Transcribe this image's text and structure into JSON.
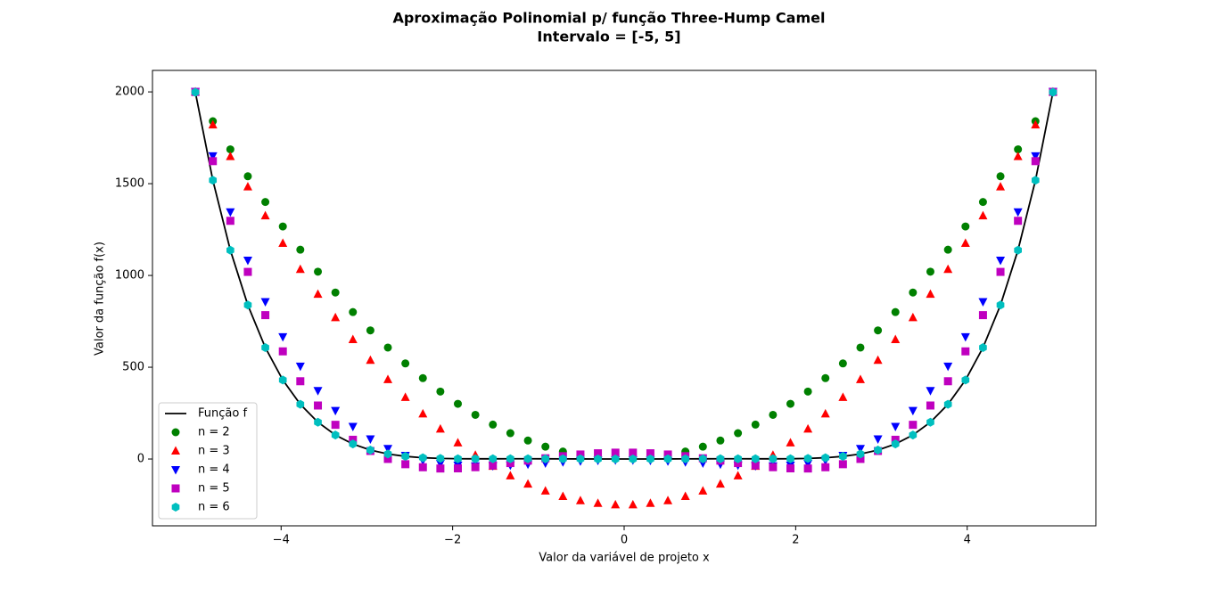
{
  "chart_data": {
    "type": "scatter",
    "title": "Aproximação Polinomial p/ função Three-Hump Camel",
    "subtitle": "Intervalo = [-5, 5]",
    "xlabel": "Valor da variável de projeto x",
    "ylabel": "Valor da função f(x)",
    "xlim": [
      -5.5,
      5.5
    ],
    "ylim": [
      -364,
      2117
    ],
    "xticks": [
      {
        "value": -4,
        "label": "−4"
      },
      {
        "value": -2,
        "label": "−2"
      },
      0,
      2,
      4
    ],
    "yticks": [
      0,
      500,
      1000,
      1500,
      2000
    ],
    "legend": "lower left",
    "x": [
      -5,
      -4.796,
      -4.592,
      -4.388,
      -4.184,
      -3.98,
      -3.776,
      -3.571,
      -3.367,
      -3.163,
      -2.959,
      -2.755,
      -2.551,
      -2.347,
      -2.143,
      -1.939,
      -1.735,
      -1.531,
      -1.327,
      -1.122,
      -0.918,
      -0.714,
      -0.51,
      -0.306,
      -0.102,
      0.102,
      0.306,
      0.51,
      0.714,
      0.918,
      1.122,
      1.327,
      1.531,
      1.735,
      1.939,
      2.143,
      2.347,
      2.551,
      2.755,
      2.959,
      3.163,
      3.367,
      3.571,
      3.776,
      3.98,
      4.184,
      4.388,
      4.592,
      4.796,
      5
    ],
    "series": [
      {
        "name": "Função f",
        "color": "#000000",
        "style": "line",
        "values": [
          1997.92,
          1518.57,
          1137.68,
          838.65,
          607.03,
          430.35,
          297.89,
          200.54,
          130.66,
          81.86,
          48.91,
          27.57,
          14.48,
          7.01,
          3.18,
          1.53,
          1.05,
          1.07,
          1.18,
          1.19,
          1.04,
          0.77,
          0.45,
          0.18,
          0.02,
          0.02,
          0.18,
          0.45,
          0.77,
          1.04,
          1.19,
          1.18,
          1.07,
          1.05,
          1.53,
          3.18,
          7.01,
          14.48,
          27.57,
          48.91,
          81.86,
          130.66,
          200.54,
          297.89,
          430.35,
          607.03,
          838.65,
          1137.68,
          1518.57,
          1997.92
        ]
      },
      {
        "name": "n = 2",
        "color": "#008000",
        "marker": "o",
        "values": [
          2000,
          1840.07,
          1686.8,
          1540.2,
          1400.25,
          1266.97,
          1140.36,
          1020.41,
          907.12,
          800.5,
          700.54,
          607.25,
          520.62,
          440.65,
          367.35,
          300.71,
          240.73,
          187.42,
          140.77,
          100.79,
          67.47,
          40.82,
          20.82,
          7.5,
          0.83,
          0.83,
          7.5,
          20.82,
          40.82,
          67.47,
          100.79,
          140.77,
          187.42,
          240.73,
          300.71,
          367.35,
          440.65,
          520.62,
          607.25,
          700.54,
          800.5,
          907.12,
          1020.41,
          1140.36,
          1266.97,
          1400.25,
          1540.2,
          1686.8,
          1840.07,
          2000
        ]
      },
      {
        "name": "n = 3",
        "color": "#ff0000",
        "marker": "^",
        "values": [
          2000,
          1820.08,
          1647.65,
          1482.72,
          1325.28,
          1175.34,
          1032.9,
          897.96,
          770.51,
          650.57,
          538.11,
          433.15,
          335.69,
          245.73,
          163.27,
          88.3,
          20.82,
          -39.15,
          -91.63,
          -136.61,
          -174.09,
          -204.08,
          -226.57,
          -241.57,
          -249.06,
          -249.06,
          -241.57,
          -226.57,
          -204.08,
          -174.09,
          -136.61,
          -91.63,
          -39.15,
          20.82,
          88.3,
          163.27,
          245.73,
          335.69,
          433.15,
          538.11,
          650.57,
          770.51,
          897.96,
          1032.9,
          1175.34,
          1325.28,
          1482.72,
          1647.65,
          1820.08,
          2000
        ]
      },
      {
        "name": "n = 4",
        "color": "#0000ff",
        "marker": "v",
        "values": [
          2002.5,
          1651.6,
          1346.38,
          1082.86,
          857.25,
          665.96,
          505.51,
          372.63,
          264.23,
          177.37,
          109.3,
          57.43,
          19.35,
          -7.18,
          -24.24,
          -33.71,
          -37.32,
          -36.63,
          -33,
          -27.66,
          -21.62,
          -15.76,
          -10.76,
          -7.14,
          -5.24,
          -5.24,
          -7.14,
          -10.76,
          -15.76,
          -21.62,
          -27.66,
          -33,
          -36.63,
          -37.32,
          -33.71,
          -24.24,
          -7.18,
          19.35,
          57.43,
          109.3,
          177.37,
          264.23,
          372.63,
          505.51,
          665.96,
          857.25,
          1082.86,
          1346.38,
          1651.6,
          2002.5
        ]
      },
      {
        "name": "n = 5",
        "color": "#bf00bf",
        "marker": "s",
        "values": [
          1999.38,
          1622.73,
          1297.58,
          1019.38,
          783.73,
          586.48,
          423.65,
          291.45,
          186.31,
          104.84,
          43.87,
          0.42,
          -28.29,
          -44.86,
          -51.67,
          -50.89,
          -44.53,
          -34.38,
          -22.01,
          -8.82,
          3.99,
          15.42,
          24.7,
          31.22,
          34.58,
          34.58,
          31.22,
          24.7,
          15.42,
          3.99,
          -8.82,
          -22.01,
          -34.38,
          -44.53,
          -50.89,
          -51.67,
          -44.86,
          -28.29,
          0.42,
          43.87,
          104.84,
          186.31,
          291.45,
          423.65,
          586.48,
          783.73,
          1019.38,
          1297.58,
          1622.73,
          1999.38
        ]
      },
      {
        "name": "n = 6",
        "color": "#00bfbf",
        "marker": "h",
        "values": [
          1997.92,
          1518.57,
          1137.68,
          838.65,
          607.03,
          430.35,
          297.89,
          200.54,
          130.66,
          81.86,
          48.91,
          27.57,
          14.48,
          7.01,
          3.18,
          1.53,
          1.05,
          1.07,
          1.18,
          1.19,
          1.04,
          0.77,
          0.45,
          0.18,
          0.02,
          0.02,
          0.18,
          0.45,
          0.77,
          1.04,
          1.19,
          1.18,
          1.07,
          1.05,
          1.53,
          3.18,
          7.01,
          14.48,
          27.57,
          48.91,
          81.86,
          130.66,
          200.54,
          297.89,
          430.35,
          607.03,
          838.65,
          1137.68,
          1518.57,
          1997.92
        ]
      }
    ]
  }
}
